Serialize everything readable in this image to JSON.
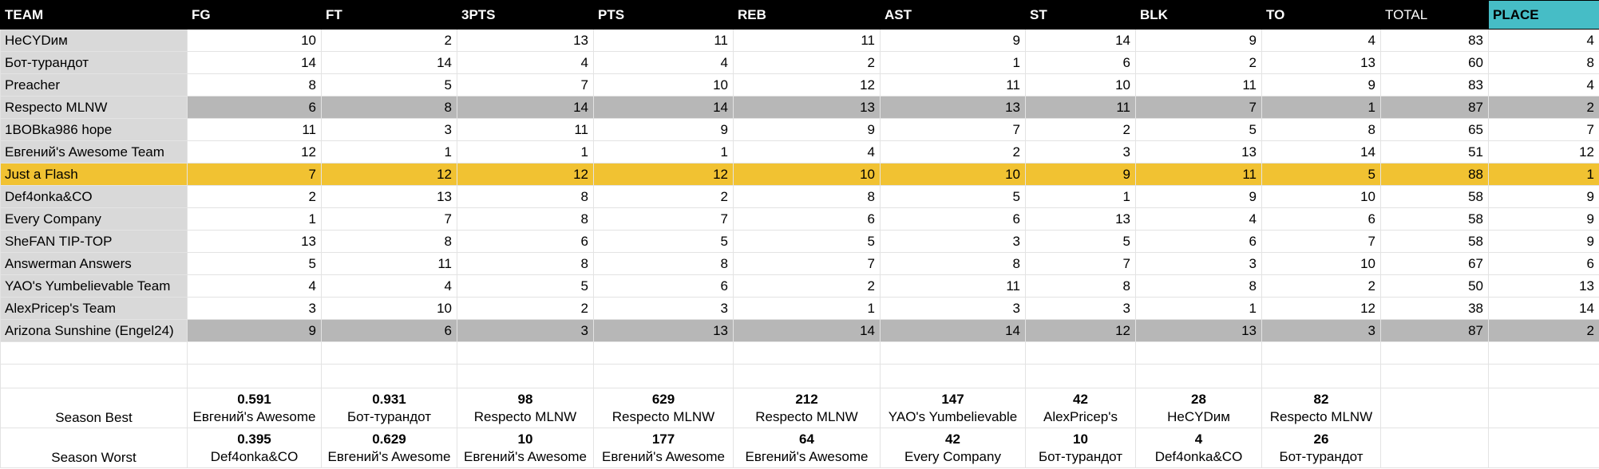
{
  "headers": [
    "TEAM",
    "FG",
    "FT",
    "3PTS",
    "PTS",
    "REB",
    "AST",
    "ST",
    "BLK",
    "TO",
    "TOTAL",
    "PLACE"
  ],
  "colors": {
    "header_bg": "#000000",
    "place_header": "#46bdc6",
    "team_col": "#d9d9d9",
    "tied_row": "#b7b7b7",
    "leader_row": "#f1c232"
  },
  "rows": [
    {
      "team": "НеCYDим",
      "fg": "10",
      "ft": "2",
      "three": "13",
      "pts": "11",
      "reb": "11",
      "ast": "9",
      "st": "14",
      "blk": "9",
      "to": "4",
      "total": "83",
      "place": "4"
    },
    {
      "team": "Бот-турандот",
      "fg": "14",
      "ft": "14",
      "three": "4",
      "pts": "4",
      "reb": "2",
      "ast": "1",
      "st": "6",
      "blk": "2",
      "to": "13",
      "total": "60",
      "place": "8"
    },
    {
      "team": "Preacher",
      "fg": "8",
      "ft": "5",
      "three": "7",
      "pts": "10",
      "reb": "12",
      "ast": "11",
      "st": "10",
      "blk": "11",
      "to": "9",
      "total": "83",
      "place": "4"
    },
    {
      "team": "Respecto MLNW",
      "fg": "6",
      "ft": "8",
      "three": "14",
      "pts": "14",
      "reb": "13",
      "ast": "13",
      "st": "11",
      "blk": "7",
      "to": "1",
      "total": "87",
      "place": "2"
    },
    {
      "team": "1BOBka986 hope",
      "fg": "11",
      "ft": "3",
      "three": "11",
      "pts": "9",
      "reb": "9",
      "ast": "7",
      "st": "2",
      "blk": "5",
      "to": "8",
      "total": "65",
      "place": "7"
    },
    {
      "team": "Евгений's Awesome Team",
      "fg": "12",
      "ft": "1",
      "three": "1",
      "pts": "1",
      "reb": "4",
      "ast": "2",
      "st": "3",
      "blk": "13",
      "to": "14",
      "total": "51",
      "place": "12"
    },
    {
      "team": "Just a Flash",
      "fg": "7",
      "ft": "12",
      "three": "12",
      "pts": "12",
      "reb": "10",
      "ast": "10",
      "st": "9",
      "blk": "11",
      "to": "5",
      "total": "88",
      "place": "1"
    },
    {
      "team": "Def4onka&CO",
      "fg": "2",
      "ft": "13",
      "three": "8",
      "pts": "2",
      "reb": "8",
      "ast": "5",
      "st": "1",
      "blk": "9",
      "to": "10",
      "total": "58",
      "place": "9"
    },
    {
      "team": "Every Company",
      "fg": "1",
      "ft": "7",
      "three": "8",
      "pts": "7",
      "reb": "6",
      "ast": "6",
      "st": "13",
      "blk": "4",
      "to": "6",
      "total": "58",
      "place": "9"
    },
    {
      "team": "SheFAN TIP-TOP",
      "fg": "13",
      "ft": "8",
      "three": "6",
      "pts": "5",
      "reb": "5",
      "ast": "3",
      "st": "5",
      "blk": "6",
      "to": "7",
      "total": "58",
      "place": "9"
    },
    {
      "team": "Answerman Answers",
      "fg": "5",
      "ft": "11",
      "three": "8",
      "pts": "8",
      "reb": "7",
      "ast": "8",
      "st": "7",
      "blk": "3",
      "to": "10",
      "total": "67",
      "place": "6"
    },
    {
      "team": "YAO's Yumbelievable Team",
      "fg": "4",
      "ft": "4",
      "three": "5",
      "pts": "6",
      "reb": "2",
      "ast": "11",
      "st": "8",
      "blk": "8",
      "to": "2",
      "total": "50",
      "place": "13"
    },
    {
      "team": "AlexPricep's Team",
      "fg": "3",
      "ft": "10",
      "three": "2",
      "pts": "3",
      "reb": "1",
      "ast": "3",
      "st": "3",
      "blk": "1",
      "to": "12",
      "total": "38",
      "place": "14"
    },
    {
      "team": "Arizona Sunshine (Engel24)",
      "fg": "9",
      "ft": "6",
      "three": "3",
      "pts": "13",
      "reb": "14",
      "ast": "14",
      "st": "12",
      "blk": "13",
      "to": "3",
      "total": "87",
      "place": "2"
    }
  ],
  "season_best": {
    "label": "Season Best",
    "cells": [
      {
        "value": "0.591",
        "team": "Евгений's Awesome"
      },
      {
        "value": "0.931",
        "team": "Бот-турандот"
      },
      {
        "value": "98",
        "team": "Respecto MLNW"
      },
      {
        "value": "629",
        "team": "Respecto MLNW"
      },
      {
        "value": "212",
        "team": "Respecto MLNW"
      },
      {
        "value": "147",
        "team": "YAO's Yumbelievable"
      },
      {
        "value": "42",
        "team": "AlexPricep's"
      },
      {
        "value": "28",
        "team": "НеCYDим"
      },
      {
        "value": "82",
        "team": "Respecto MLNW"
      }
    ]
  },
  "season_worst": {
    "label": "Season Worst",
    "cells": [
      {
        "value": "0.395",
        "team": "Def4onka&CO"
      },
      {
        "value": "0.629",
        "team": "Евгений's Awesome"
      },
      {
        "value": "10",
        "team": "Евгений's Awesome"
      },
      {
        "value": "177",
        "team": "Евгений's Awesome"
      },
      {
        "value": "64",
        "team": "Евгений's Awesome"
      },
      {
        "value": "42",
        "team": "Every Company"
      },
      {
        "value": "10",
        "team": "Бот-турандот"
      },
      {
        "value": "4",
        "team": "Def4onka&CO"
      },
      {
        "value": "26",
        "team": "Бот-турандот"
      }
    ]
  }
}
